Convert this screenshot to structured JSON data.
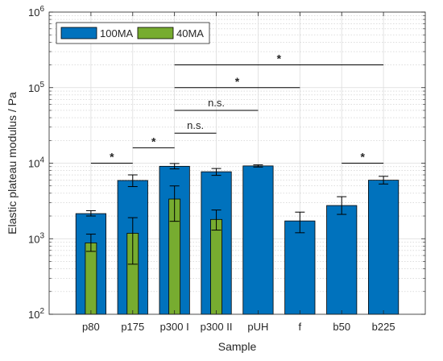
{
  "chart_data": {
    "type": "bar",
    "xlabel": "Sample",
    "ylabel": "Elastic plateau modulus / Pa",
    "yscale": "log",
    "ylim": [
      100,
      1000000
    ],
    "yticks": [
      {
        "value": 100,
        "base": "10",
        "exp": "2"
      },
      {
        "value": 1000,
        "base": "10",
        "exp": "3"
      },
      {
        "value": 10000,
        "base": "10",
        "exp": "4"
      },
      {
        "value": 100000,
        "base": "10",
        "exp": "5"
      },
      {
        "value": 1000000,
        "base": "10",
        "exp": "6"
      }
    ],
    "grid": true,
    "legend_position": "top-left",
    "categories": [
      "p80",
      "p175",
      "p300 I",
      "p300 II",
      "pUH",
      "f",
      "b50",
      "b225"
    ],
    "series": [
      {
        "name": "100MA",
        "color": "#0072BD",
        "values": [
          2150,
          5900,
          9100,
          7700,
          9200,
          1720,
          2750,
          5950
        ],
        "err_low": [
          2000,
          4900,
          8400,
          6900,
          8900,
          1200,
          2100,
          5300
        ],
        "err_high": [
          2350,
          7000,
          9900,
          8500,
          9500,
          2250,
          3600,
          6700
        ]
      },
      {
        "name": "40MA",
        "color": "#77AC30",
        "values": [
          880,
          1180,
          3350,
          1800,
          null,
          null,
          null,
          null
        ],
        "err_low": [
          680,
          460,
          1700,
          1300,
          null,
          null,
          null,
          null
        ],
        "err_high": [
          1150,
          1900,
          5000,
          2400,
          null,
          null,
          null,
          null
        ]
      }
    ],
    "annotations": [
      {
        "from": "p80",
        "to": "p175",
        "y": 10000,
        "label": "*"
      },
      {
        "from": "p175",
        "to": "p300 I",
        "y": 16000,
        "label": "*"
      },
      {
        "from": "p300 I",
        "to": "p300 II",
        "y": 25000,
        "label": "n.s."
      },
      {
        "from": "p300 I",
        "to": "pUH",
        "y": 50000,
        "label": "n.s."
      },
      {
        "from": "p300 I",
        "to": "f",
        "y": 100000,
        "label": "*"
      },
      {
        "from": "p300 I",
        "to": "b225",
        "y": 200000,
        "label": "*"
      },
      {
        "from": "b50",
        "to": "b225",
        "y": 10000,
        "label": "*"
      }
    ]
  }
}
